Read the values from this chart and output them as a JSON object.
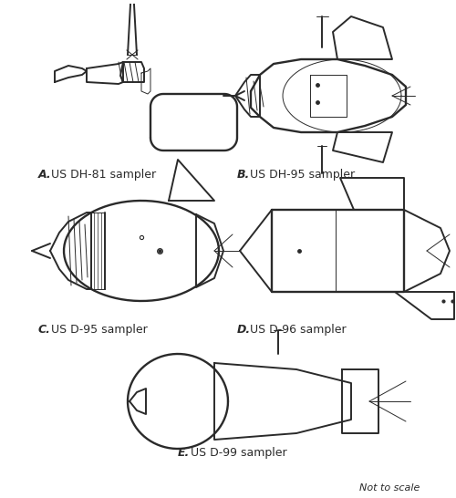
{
  "background_color": "#ffffff",
  "labels": {
    "A": "A.",
    "A_rest": " US DH-81 sampler",
    "B": "B.",
    "B_rest": " US DH-95 sampler",
    "C": "C.",
    "C_rest": " US D-95 sampler",
    "D": "D.",
    "D_rest": " US D-96 sampler",
    "E": "E.",
    "E_rest": " US D-99 sampler",
    "note": "Not to scale"
  },
  "line_color": "#2a2a2a",
  "line_width": 1.4,
  "figsize": [
    5.0,
    5.46
  ],
  "dpi": 100
}
